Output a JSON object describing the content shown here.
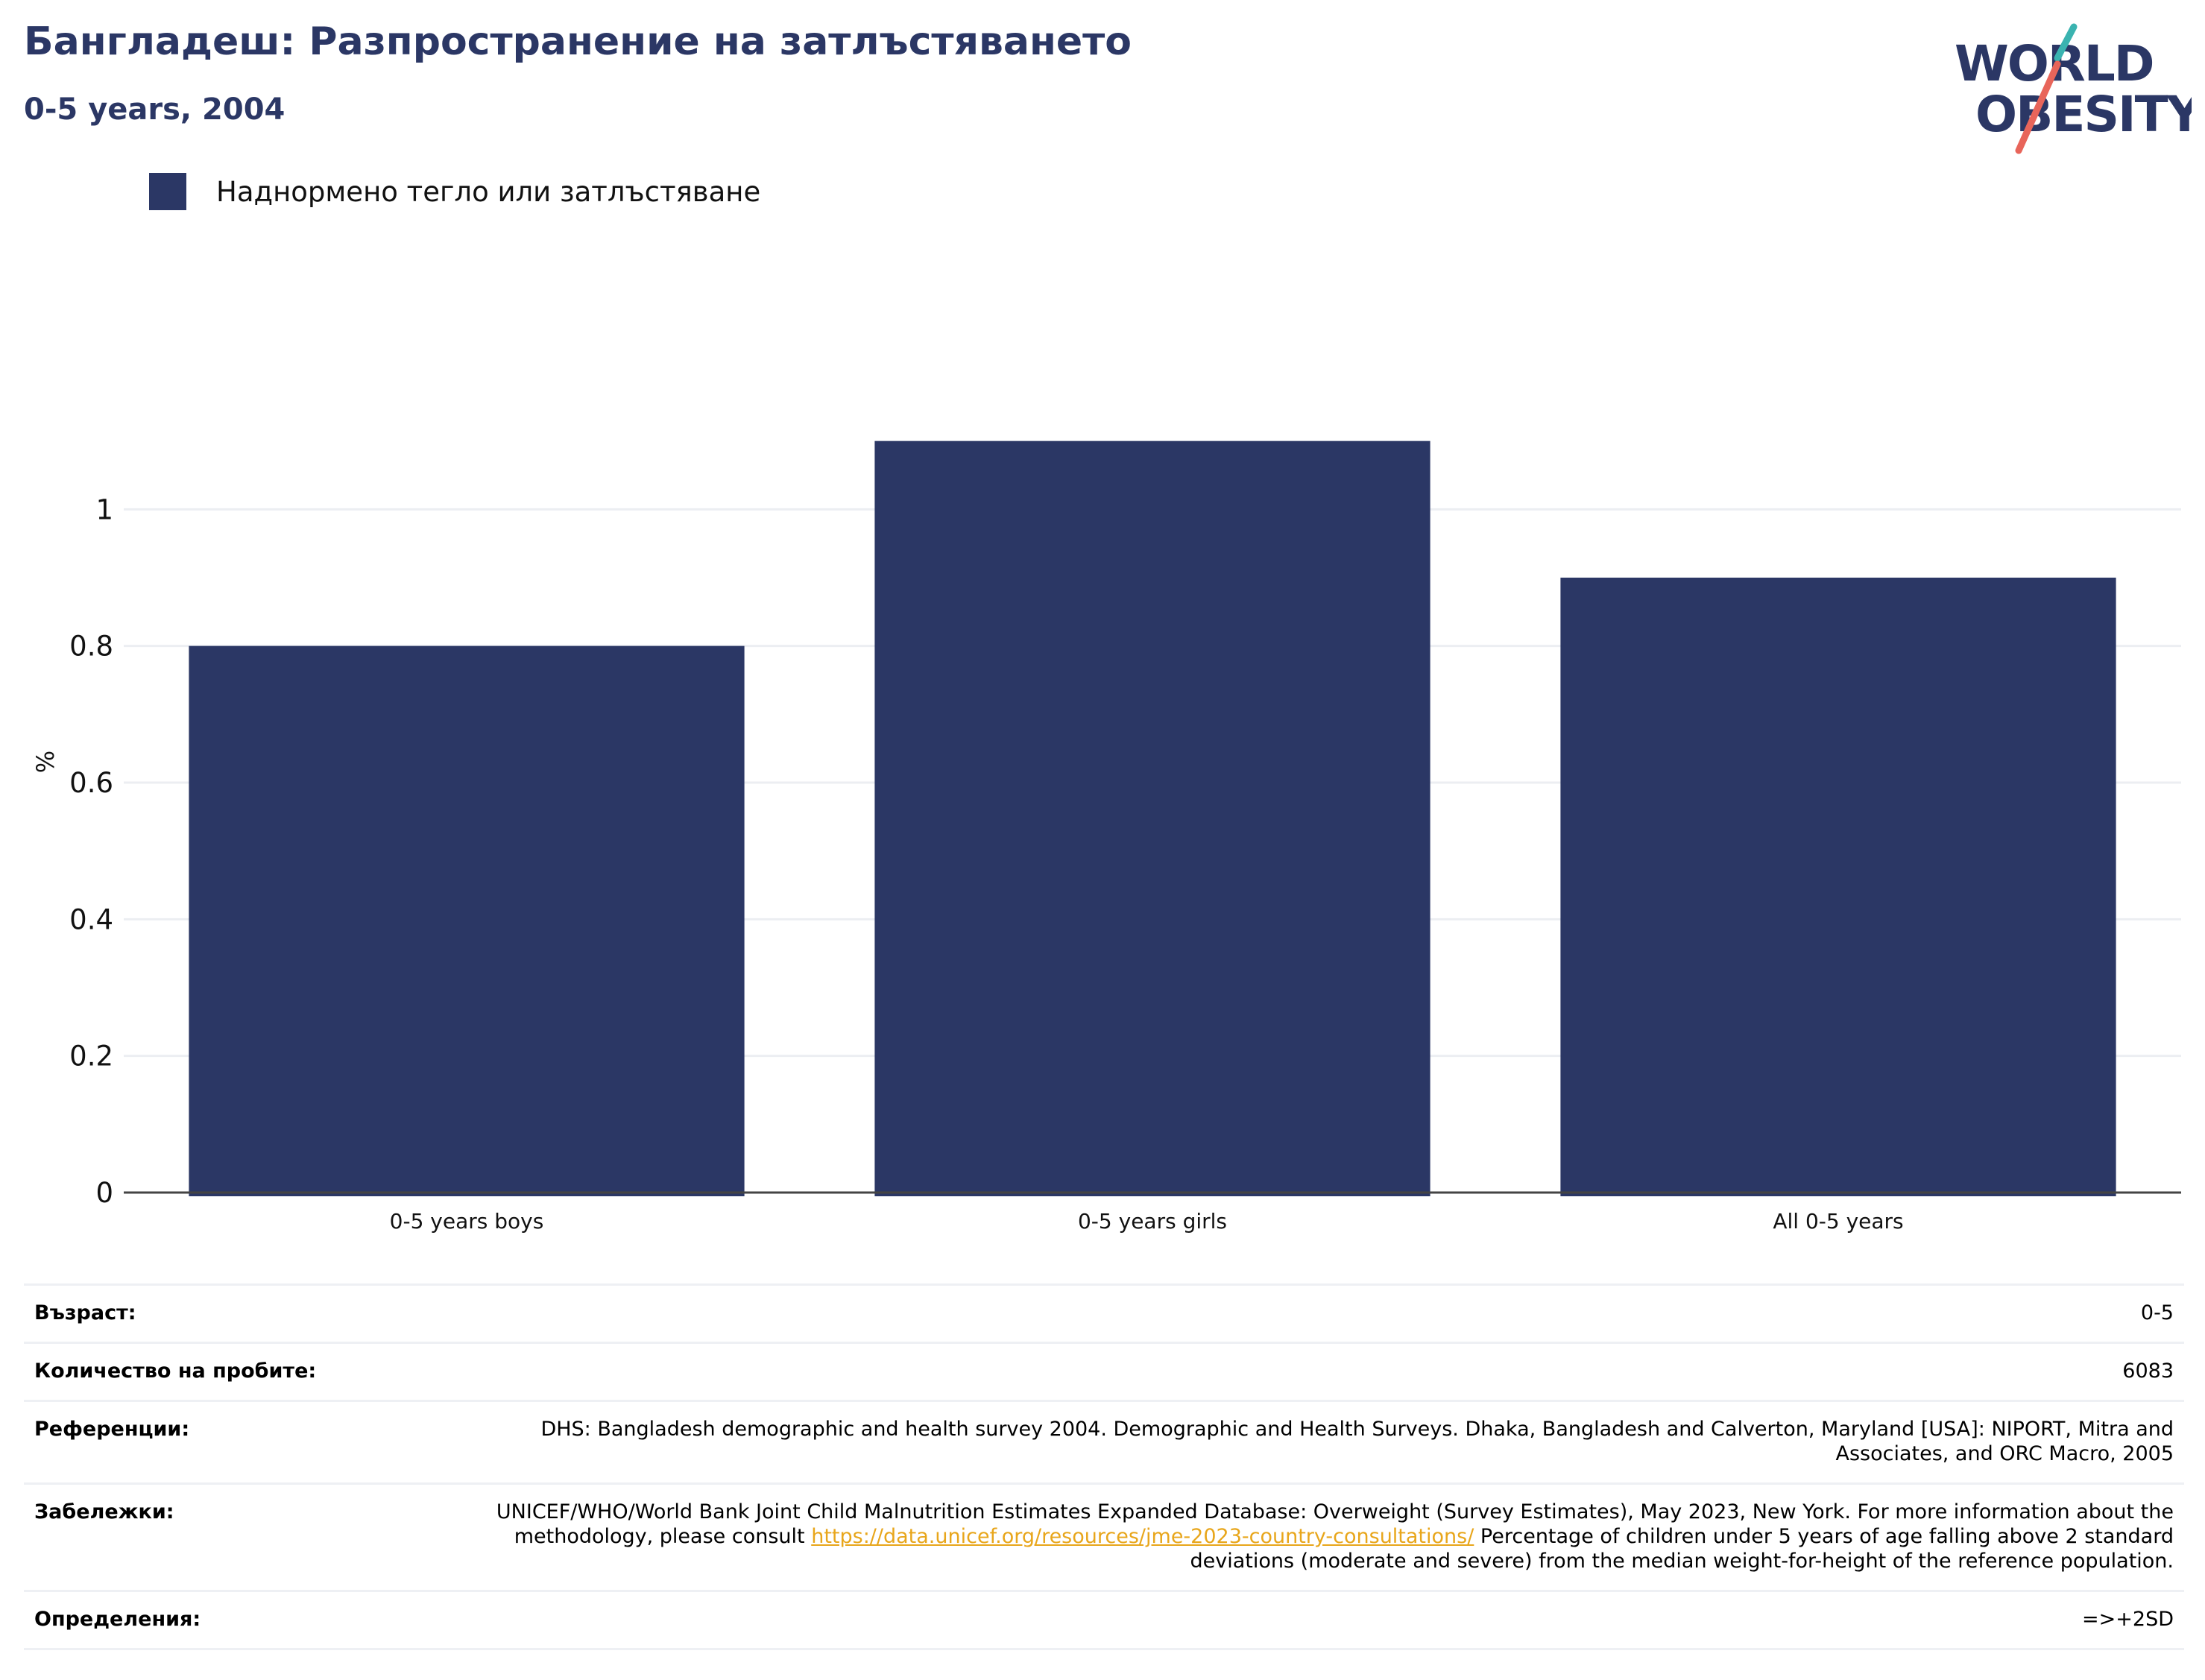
{
  "header": {
    "title": "Бангладеш: Разпространение на затлъстяването",
    "subtitle": "0-5 years, 2004"
  },
  "logo": {
    "line1": "WORLD",
    "line2": "OBESITY",
    "colors": {
      "text": "#2b3765",
      "slash_top": "#3ab3b0",
      "slash_bottom": "#e8655a"
    }
  },
  "legend": {
    "label": "Наднормено тегло или затлъстяване",
    "color": "#2b3765"
  },
  "chart_data": {
    "type": "bar",
    "categories": [
      "0-5 years boys",
      "0-5 years girls",
      "All 0-5 years"
    ],
    "series": [
      {
        "name": "Наднормено тегло или затлъстяване",
        "values": [
          0.8,
          1.1,
          0.9
        ],
        "color": "#2b3765"
      }
    ],
    "ylabel": "%",
    "ylim": [
      0,
      1.2
    ],
    "yticks": [
      "0",
      "0.2",
      "0.4",
      "0.6",
      "0.8",
      "1"
    ],
    "grid": true,
    "legend_position": "top-left"
  },
  "info": {
    "age_label": "Възраст:",
    "age_value": "0-5",
    "sample_label": "Количество на пробите:",
    "sample_value": "6083",
    "refs_label": "Референции:",
    "refs_value": "DHS: Bangladesh demographic and health survey 2004. Demographic and Health Surveys. Dhaka, Bangladesh and Calverton, Maryland [USA]: NIPORT, Mitra and Associates, and ORC Macro, 2005",
    "notes_label": "Забележки:",
    "notes_before": "UNICEF/WHO/World Bank Joint Child Malnutrition Estimates Expanded Database: Overweight (Survey Estimates), May 2023, New York. For more information about the methodology, please consult",
    "notes_link": "https://data.unicef.org/resources/jme-2023-country-consultations/",
    "notes_after": "Percentage of children under 5 years of age falling above 2 standard deviations (moderate and severe) from the median weight-for-height of the reference population.",
    "defs_label": "Определения:",
    "defs_value": "=>+2SD"
  }
}
